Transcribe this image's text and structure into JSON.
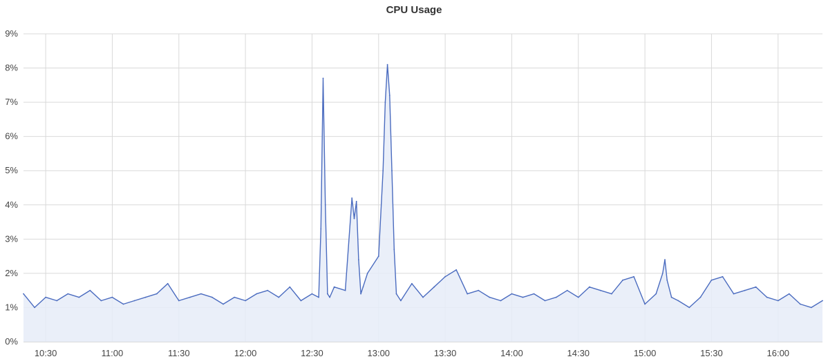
{
  "chart_data": {
    "type": "area",
    "title": "CPU Usage",
    "xlabel": "",
    "ylabel": "",
    "x_range": [
      "10:20",
      "16:20"
    ],
    "ylim": [
      0,
      9
    ],
    "y_ticks": [
      {
        "value": 0,
        "label": "0%"
      },
      {
        "value": 1,
        "label": "1%"
      },
      {
        "value": 2,
        "label": "2%"
      },
      {
        "value": 3,
        "label": "3%"
      },
      {
        "value": 4,
        "label": "4%"
      },
      {
        "value": 5,
        "label": "5%"
      },
      {
        "value": 6,
        "label": "6%"
      },
      {
        "value": 7,
        "label": "7%"
      },
      {
        "value": 8,
        "label": "8%"
      },
      {
        "value": 9,
        "label": "9%"
      }
    ],
    "x_ticks": [
      "10:30",
      "11:00",
      "11:30",
      "12:00",
      "12:30",
      "13:00",
      "13:30",
      "14:00",
      "14:30",
      "15:00",
      "15:30",
      "16:00"
    ],
    "grid": true,
    "legend": "none",
    "colors": {
      "line": "#4a6bbf",
      "fill": "#e6ecf8",
      "grid": "#d9d9d9"
    },
    "series": [
      {
        "x": [
          "10:20",
          "10:25",
          "10:30",
          "10:35",
          "10:40",
          "10:45",
          "10:50",
          "10:55",
          "11:00",
          "11:05",
          "11:10",
          "11:15",
          "11:20",
          "11:25",
          "11:30",
          "11:35",
          "11:40",
          "11:45",
          "11:50",
          "11:55",
          "12:00",
          "12:05",
          "12:10",
          "12:15",
          "12:20",
          "12:25",
          "12:30",
          "12:33",
          "12:34",
          "12:35",
          "12:36",
          "12:37",
          "12:38",
          "12:40",
          "12:45",
          "12:48",
          "12:49",
          "12:50",
          "12:51",
          "12:52",
          "12:53",
          "12:55",
          "13:00",
          "13:02",
          "13:03",
          "13:04",
          "13:05",
          "13:06",
          "13:07",
          "13:08",
          "13:10",
          "13:15",
          "13:20",
          "13:25",
          "13:30",
          "13:35",
          "13:40",
          "13:45",
          "13:50",
          "13:55",
          "14:00",
          "14:05",
          "14:10",
          "14:15",
          "14:20",
          "14:25",
          "14:30",
          "14:35",
          "14:40",
          "14:45",
          "14:50",
          "14:55",
          "15:00",
          "15:05",
          "15:08",
          "15:09",
          "15:10",
          "15:12",
          "15:15",
          "15:20",
          "15:25",
          "15:30",
          "15:35",
          "15:40",
          "15:45",
          "15:50",
          "15:55",
          "16:00",
          "16:05",
          "16:10",
          "16:15",
          "16:20"
        ],
        "y": [
          1.4,
          1.0,
          1.3,
          1.2,
          1.4,
          1.3,
          1.5,
          1.2,
          1.3,
          1.1,
          1.2,
          1.3,
          1.4,
          1.7,
          1.2,
          1.3,
          1.4,
          1.3,
          1.1,
          1.3,
          1.2,
          1.4,
          1.5,
          1.3,
          1.6,
          1.2,
          1.4,
          1.3,
          3.3,
          7.7,
          4.0,
          1.4,
          1.3,
          1.6,
          1.5,
          4.2,
          3.6,
          4.1,
          2.4,
          1.4,
          1.6,
          2.0,
          2.5,
          5.0,
          7.0,
          8.1,
          7.2,
          5.0,
          2.7,
          1.4,
          1.2,
          1.7,
          1.3,
          1.6,
          1.9,
          2.1,
          1.4,
          1.5,
          1.3,
          1.2,
          1.4,
          1.3,
          1.4,
          1.2,
          1.3,
          1.5,
          1.3,
          1.6,
          1.5,
          1.4,
          1.8,
          1.9,
          1.1,
          1.4,
          2.0,
          2.4,
          1.8,
          1.3,
          1.2,
          1.0,
          1.3,
          1.8,
          1.9,
          1.4,
          1.5,
          1.6,
          1.3,
          1.2,
          1.4,
          1.1,
          1.0,
          1.2
        ]
      }
    ]
  }
}
